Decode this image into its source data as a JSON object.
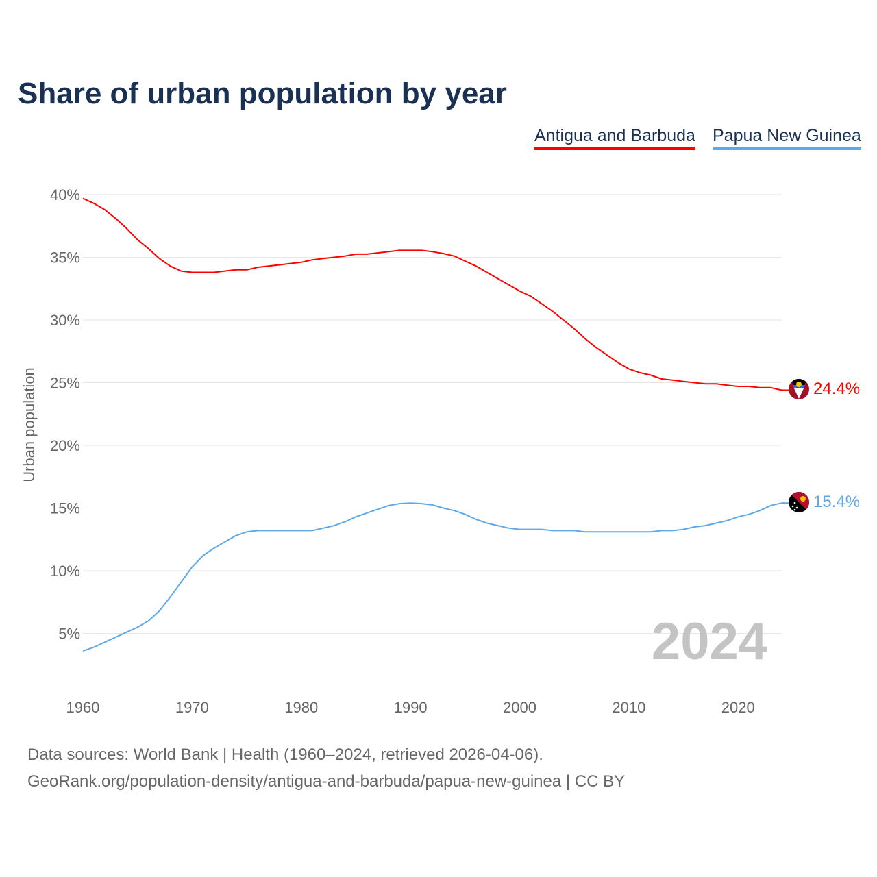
{
  "chart_data": {
    "type": "line",
    "title": "Share of urban population by year",
    "ylabel": "Urban population",
    "xlabel": "",
    "ylim": [
      0,
      40
    ],
    "xlim": [
      1960,
      2024
    ],
    "x_ticks": [
      1960,
      1970,
      1980,
      1990,
      2000,
      2010,
      2020
    ],
    "y_ticks": [
      5,
      10,
      15,
      20,
      25,
      30,
      35,
      40
    ],
    "y_tick_labels": [
      "5%",
      "10%",
      "15%",
      "20%",
      "25%",
      "30%",
      "35%",
      "40%"
    ],
    "grid": true,
    "legend_position": "top-right",
    "watermark_year": "2024",
    "x": [
      1960,
      1961,
      1962,
      1963,
      1964,
      1965,
      1966,
      1967,
      1968,
      1969,
      1970,
      1971,
      1972,
      1973,
      1974,
      1975,
      1976,
      1977,
      1978,
      1979,
      1980,
      1981,
      1982,
      1983,
      1984,
      1985,
      1986,
      1987,
      1988,
      1989,
      1990,
      1991,
      1992,
      1993,
      1994,
      1995,
      1996,
      1997,
      1998,
      1999,
      2000,
      2001,
      2002,
      2003,
      2004,
      2005,
      2006,
      2007,
      2008,
      2009,
      2010,
      2011,
      2012,
      2013,
      2014,
      2015,
      2016,
      2017,
      2018,
      2019,
      2020,
      2021,
      2022,
      2023,
      2024
    ],
    "series": [
      {
        "name": "Antigua and Barbuda",
        "color": "#ff0000",
        "end_label": "24.4%",
        "values": [
          39.7,
          39.3,
          38.8,
          38.1,
          37.3,
          36.4,
          35.7,
          34.9,
          34.3,
          33.9,
          33.8,
          33.8,
          33.8,
          33.9,
          34.0,
          34.0,
          34.2,
          34.3,
          34.4,
          34.5,
          34.6,
          34.8,
          34.9,
          35.0,
          35.1,
          35.25,
          35.25,
          35.35,
          35.45,
          35.55,
          35.55,
          35.55,
          35.45,
          35.3,
          35.1,
          34.7,
          34.3,
          33.8,
          33.3,
          32.8,
          32.3,
          31.9,
          31.3,
          30.7,
          30.0,
          29.3,
          28.5,
          27.8,
          27.2,
          26.6,
          26.1,
          25.8,
          25.6,
          25.3,
          25.2,
          25.1,
          25.0,
          24.9,
          24.9,
          24.8,
          24.7,
          24.7,
          24.6,
          24.6,
          24.4
        ]
      },
      {
        "name": "Papua New Guinea",
        "color": "#5ea8ea",
        "end_label": "15.4%",
        "values": [
          3.6,
          3.9,
          4.3,
          4.7,
          5.1,
          5.5,
          6.0,
          6.8,
          7.9,
          9.1,
          10.3,
          11.2,
          11.8,
          12.3,
          12.8,
          13.1,
          13.2,
          13.2,
          13.2,
          13.2,
          13.2,
          13.2,
          13.4,
          13.6,
          13.9,
          14.3,
          14.6,
          14.9,
          15.2,
          15.35,
          15.4,
          15.35,
          15.25,
          15.0,
          14.8,
          14.5,
          14.1,
          13.8,
          13.6,
          13.4,
          13.3,
          13.3,
          13.3,
          13.2,
          13.2,
          13.2,
          13.1,
          13.1,
          13.1,
          13.1,
          13.1,
          13.1,
          13.1,
          13.2,
          13.2,
          13.3,
          13.5,
          13.6,
          13.8,
          14.0,
          14.3,
          14.5,
          14.8,
          15.2,
          15.4
        ]
      }
    ]
  },
  "footer": {
    "line1": "Data sources: World Bank | Health (1960–2024, retrieved 2026-04-06).",
    "line2": "GeoRank.org/population-density/antigua-and-barbuda/papua-new-guinea | CC BY"
  }
}
